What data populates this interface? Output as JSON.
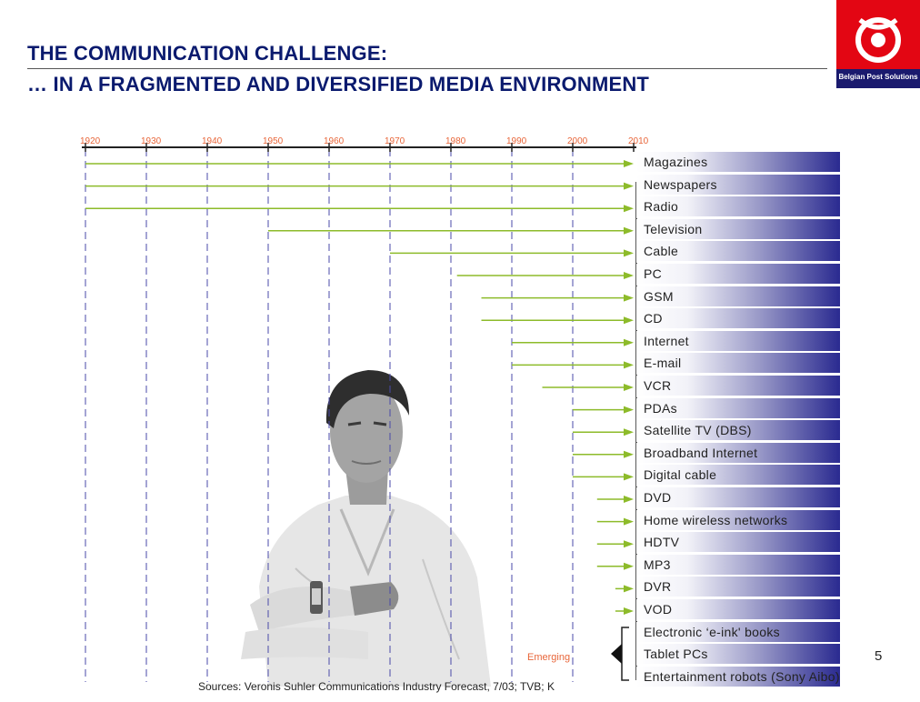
{
  "title": {
    "line1": "THE COMMUNICATION CHALLENGE:",
    "line2": "… IN A FRAGMENTED AND DIVERSIFIED MEDIA ENVIRONMENT"
  },
  "logo": {
    "text": "Belgian Post Solutions"
  },
  "timeline": {
    "years": [
      "1920",
      "1930",
      "1940",
      "1950",
      "1960",
      "1970",
      "1980",
      "1990",
      "2000",
      "2010"
    ]
  },
  "media": [
    {
      "label": "Magazines",
      "start_year": 1920
    },
    {
      "label": "Newspapers",
      "start_year": 1920
    },
    {
      "label": "Radio",
      "start_year": 1920
    },
    {
      "label": "Television",
      "start_year": 1950
    },
    {
      "label": "Cable",
      "start_year": 1970
    },
    {
      "label": "PC",
      "start_year": 1981
    },
    {
      "label": "GSM",
      "start_year": 1985
    },
    {
      "label": "CD",
      "start_year": 1985
    },
    {
      "label": "Internet",
      "start_year": 1990
    },
    {
      "label": "E-mail",
      "start_year": 1990
    },
    {
      "label": "VCR",
      "start_year": 1995
    },
    {
      "label": "PDAs",
      "start_year": 2000
    },
    {
      "label": "Satellite TV (DBS)",
      "start_year": 2000
    },
    {
      "label": "Broadband  Internet",
      "start_year": 2000
    },
    {
      "label": "Digital cable",
      "start_year": 2000
    },
    {
      "label": "DVD",
      "start_year": 2004
    },
    {
      "label": "Home wireless networks",
      "start_year": 2004
    },
    {
      "label": "HDTV",
      "start_year": 2004
    },
    {
      "label": "MP3",
      "start_year": 2004
    },
    {
      "label": "DVR",
      "start_year": 2007
    },
    {
      "label": "VOD",
      "start_year": 2007
    },
    {
      "label": "Electronic ‘e-ink' books",
      "start_year": null
    },
    {
      "label": "Tablet PCs",
      "start_year": null
    },
    {
      "label": "Entertainment  robots (Sony Aibo)",
      "start_year": null
    }
  ],
  "emerging_label": "Emerging",
  "sources": "Sources: Veronis Suhler Communications Industry Forecast, 7/03; TVB; K",
  "page_number": "5",
  "colors": {
    "title": "#0a1a6e",
    "year": "#e8663a",
    "arrow": "#8dbb2a",
    "dashed": "#4a4aa8",
    "bar_end": "#2a2a90",
    "logo": "#e30613"
  }
}
